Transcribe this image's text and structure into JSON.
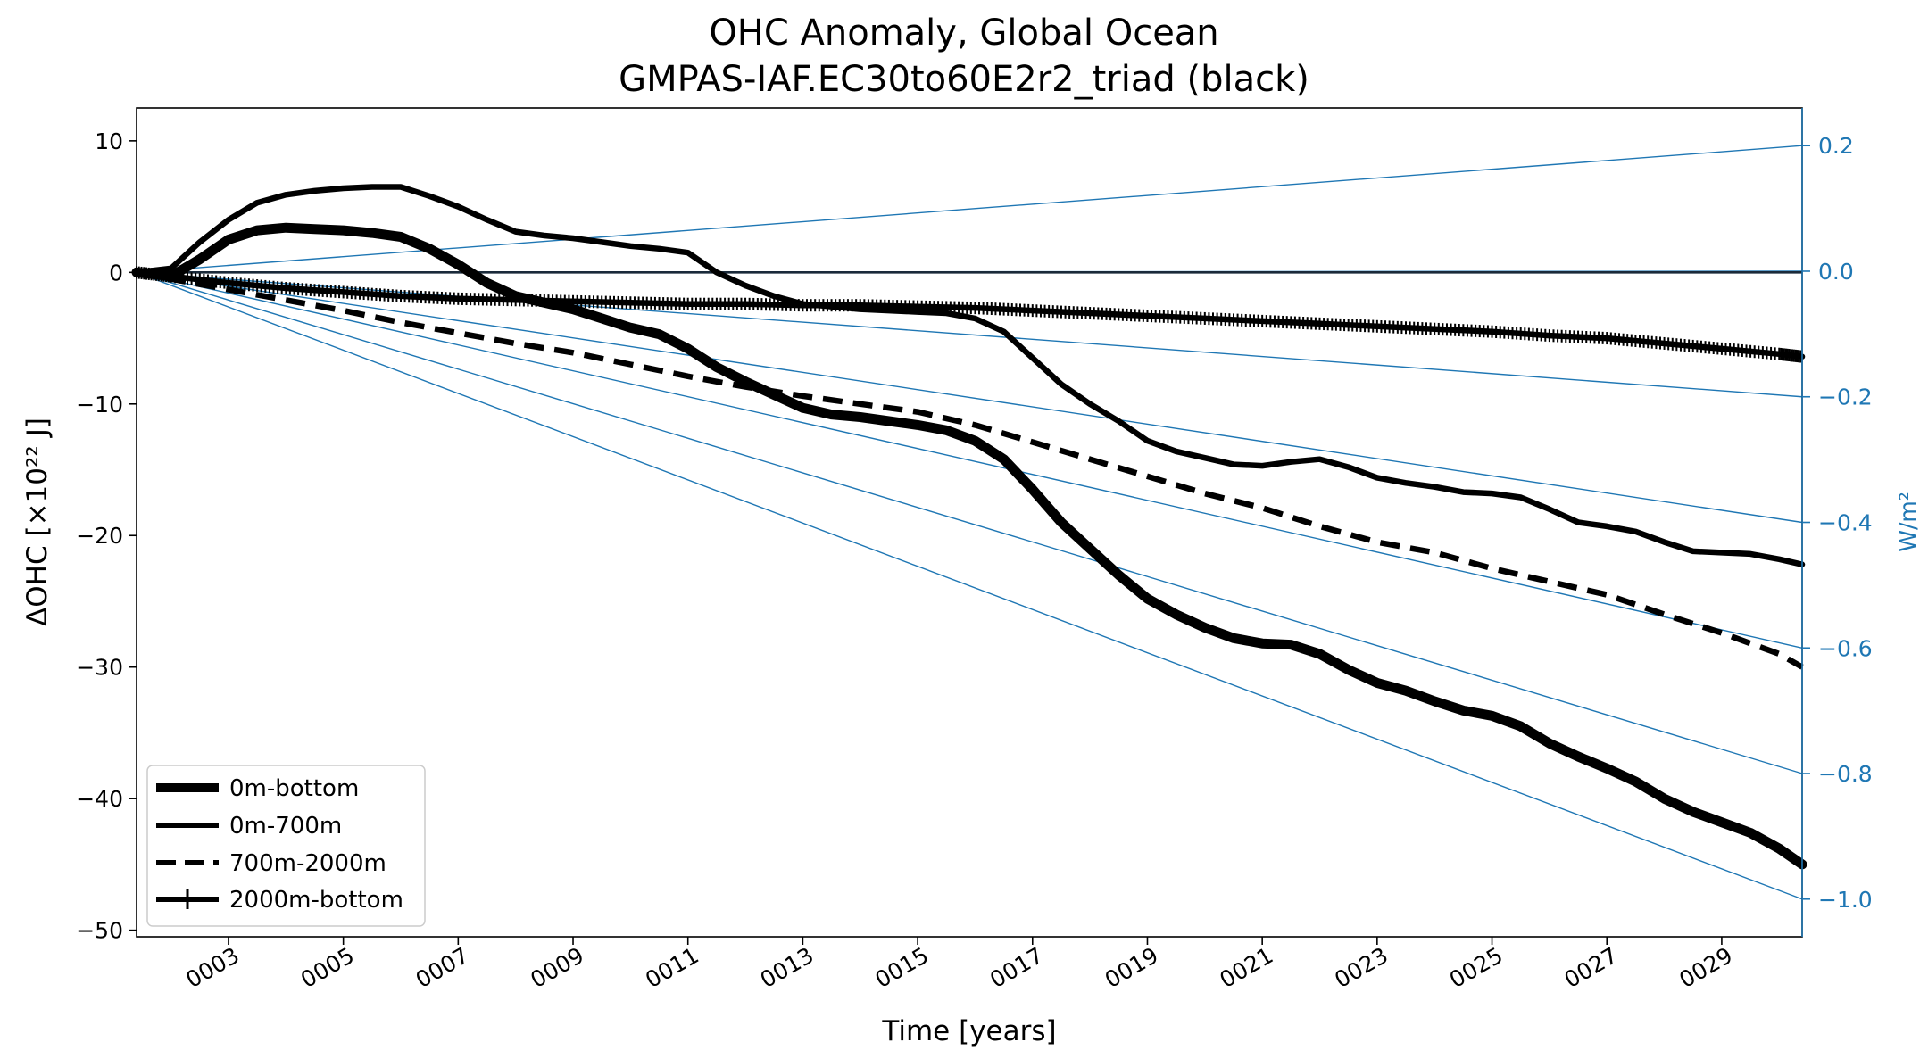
{
  "chart_data": {
    "type": "line",
    "title": "OHC Anomaly, Global Ocean",
    "subtitle": "GMPAS-IAF.EC30to60E2r2_triad (black)",
    "xlabel": "Time [years]",
    "ylabel": "ΔOHC [×10²² J]",
    "y2label": "W/m²",
    "xlim": [
      1.4,
      30.4
    ],
    "ylim": [
      -50.5,
      12.5
    ],
    "y2lim": [
      -1.06,
      0.26
    ],
    "xticks": [
      3,
      5,
      7,
      9,
      11,
      13,
      15,
      17,
      19,
      21,
      23,
      25,
      27,
      29
    ],
    "xtick_labels": [
      "0003",
      "0005",
      "0007",
      "0009",
      "0011",
      "0013",
      "0015",
      "0017",
      "0019",
      "0021",
      "0023",
      "0025",
      "0027",
      "0029"
    ],
    "yticks": [
      10,
      0,
      -10,
      -20,
      -30,
      -40,
      -50
    ],
    "ytick_labels": [
      "10",
      "0",
      "−10",
      "−20",
      "−30",
      "−40",
      "−50"
    ],
    "y2ticks": [
      0.2,
      0.0,
      -0.2,
      -0.4,
      -0.6,
      -0.8,
      -1.0
    ],
    "y2tick_labels": [
      "0.2",
      "0.0",
      "−0.2",
      "−0.4",
      "−0.6",
      "−0.8",
      "−1.0"
    ],
    "reference_lines_wm2": [
      0.2,
      0.0,
      -0.2,
      -0.4,
      -0.6,
      -0.8,
      -1.0
    ],
    "reference_color": "#1f77b4",
    "series_color": "#000000",
    "legend_position": "lower-left",
    "series": [
      {
        "name": "0m-bottom",
        "style": "thick-solid",
        "x": [
          1.4,
          2.0,
          2.5,
          3.0,
          3.5,
          4.0,
          4.5,
          5.0,
          5.5,
          6.0,
          6.5,
          7.0,
          7.5,
          8.0,
          8.5,
          9.0,
          9.5,
          10.0,
          10.5,
          11.0,
          11.5,
          12.0,
          12.5,
          13.0,
          13.5,
          14.0,
          14.5,
          15.0,
          15.5,
          16.0,
          16.5,
          17.0,
          17.5,
          18.0,
          18.5,
          19.0,
          19.5,
          20.0,
          20.5,
          21.0,
          21.5,
          22.0,
          22.5,
          23.0,
          23.5,
          24.0,
          24.5,
          25.0,
          25.5,
          26.0,
          26.5,
          27.0,
          27.5,
          28.0,
          28.5,
          29.0,
          29.5,
          30.0,
          30.4
        ],
        "y": [
          0.0,
          -0.3,
          1.0,
          2.5,
          3.2,
          3.4,
          3.3,
          3.2,
          3.0,
          2.7,
          1.8,
          0.6,
          -0.8,
          -1.8,
          -2.3,
          -2.8,
          -3.5,
          -4.2,
          -4.7,
          -5.8,
          -7.2,
          -8.3,
          -9.3,
          -10.3,
          -10.8,
          -11.0,
          -11.3,
          -11.6,
          -12.0,
          -12.8,
          -14.2,
          -16.5,
          -19.0,
          -21.0,
          -23.0,
          -24.8,
          -26.0,
          -27.0,
          -27.8,
          -28.2,
          -28.3,
          -29.0,
          -30.2,
          -31.2,
          -31.8,
          -32.6,
          -33.3,
          -33.7,
          -34.5,
          -35.8,
          -36.8,
          -37.7,
          -38.7,
          -40.0,
          -41.0,
          -41.8,
          -42.6,
          -43.8,
          -45.0
        ]
      },
      {
        "name": "0m-700m",
        "style": "solid",
        "x": [
          1.4,
          2.0,
          2.5,
          3.0,
          3.5,
          4.0,
          4.5,
          5.0,
          5.5,
          6.0,
          6.5,
          7.0,
          7.5,
          8.0,
          8.5,
          9.0,
          9.5,
          10.0,
          10.5,
          11.0,
          11.5,
          12.0,
          12.5,
          13.0,
          13.5,
          14.0,
          14.5,
          15.0,
          15.5,
          16.0,
          16.5,
          17.0,
          17.5,
          18.0,
          18.5,
          19.0,
          19.5,
          20.0,
          20.5,
          21.0,
          21.5,
          22.0,
          22.5,
          23.0,
          23.5,
          24.0,
          24.5,
          25.0,
          25.5,
          26.0,
          26.5,
          27.0,
          27.5,
          28.0,
          28.5,
          29.0,
          29.5,
          30.0,
          30.4
        ],
        "y": [
          0.0,
          0.3,
          2.3,
          4.0,
          5.3,
          5.9,
          6.2,
          6.4,
          6.5,
          6.5,
          5.8,
          5.0,
          4.0,
          3.1,
          2.8,
          2.6,
          2.3,
          2.0,
          1.8,
          1.5,
          0.0,
          -1.0,
          -1.8,
          -2.4,
          -2.6,
          -2.8,
          -2.9,
          -3.0,
          -3.1,
          -3.5,
          -4.5,
          -6.5,
          -8.5,
          -10.0,
          -11.3,
          -12.8,
          -13.6,
          -14.1,
          -14.6,
          -14.7,
          -14.4,
          -14.2,
          -14.8,
          -15.6,
          -16.0,
          -16.3,
          -16.7,
          -16.8,
          -17.1,
          -18.0,
          -19.0,
          -19.3,
          -19.7,
          -20.5,
          -21.2,
          -21.3,
          -21.4,
          -21.8,
          -22.2
        ]
      },
      {
        "name": "700m-2000m",
        "style": "dashed",
        "x": [
          1.4,
          2.0,
          3.0,
          4.0,
          5.0,
          6.0,
          7.0,
          8.0,
          9.0,
          10.0,
          11.0,
          12.0,
          13.0,
          14.0,
          15.0,
          16.0,
          17.0,
          18.0,
          19.0,
          20.0,
          21.0,
          22.0,
          23.0,
          24.0,
          25.0,
          26.0,
          27.0,
          28.0,
          29.0,
          30.0,
          30.4
        ],
        "y": [
          0.0,
          -0.5,
          -1.3,
          -2.1,
          -2.9,
          -3.8,
          -4.6,
          -5.4,
          -6.1,
          -7.0,
          -7.9,
          -8.7,
          -9.4,
          -10.0,
          -10.6,
          -11.6,
          -12.9,
          -14.2,
          -15.5,
          -16.8,
          -17.9,
          -19.3,
          -20.5,
          -21.3,
          -22.5,
          -23.5,
          -24.5,
          -26.0,
          -27.4,
          -29.0,
          -30.0
        ]
      },
      {
        "name": "2000m-bottom",
        "style": "solid-plus",
        "x": [
          1.4,
          2.0,
          3.0,
          4.0,
          5.0,
          6.0,
          7.0,
          8.0,
          9.0,
          10.0,
          11.0,
          12.0,
          13.0,
          14.0,
          15.0,
          16.0,
          17.0,
          18.0,
          19.0,
          20.0,
          21.0,
          22.0,
          23.0,
          24.0,
          25.0,
          26.0,
          27.0,
          28.0,
          29.0,
          30.0,
          30.4
        ],
        "y": [
          0.0,
          -0.3,
          -0.8,
          -1.2,
          -1.5,
          -1.8,
          -2.0,
          -2.1,
          -2.2,
          -2.3,
          -2.4,
          -2.4,
          -2.5,
          -2.5,
          -2.6,
          -2.7,
          -2.9,
          -3.1,
          -3.3,
          -3.5,
          -3.7,
          -3.9,
          -4.1,
          -4.3,
          -4.5,
          -4.8,
          -5.0,
          -5.4,
          -5.8,
          -6.2,
          -6.4
        ]
      }
    ]
  }
}
